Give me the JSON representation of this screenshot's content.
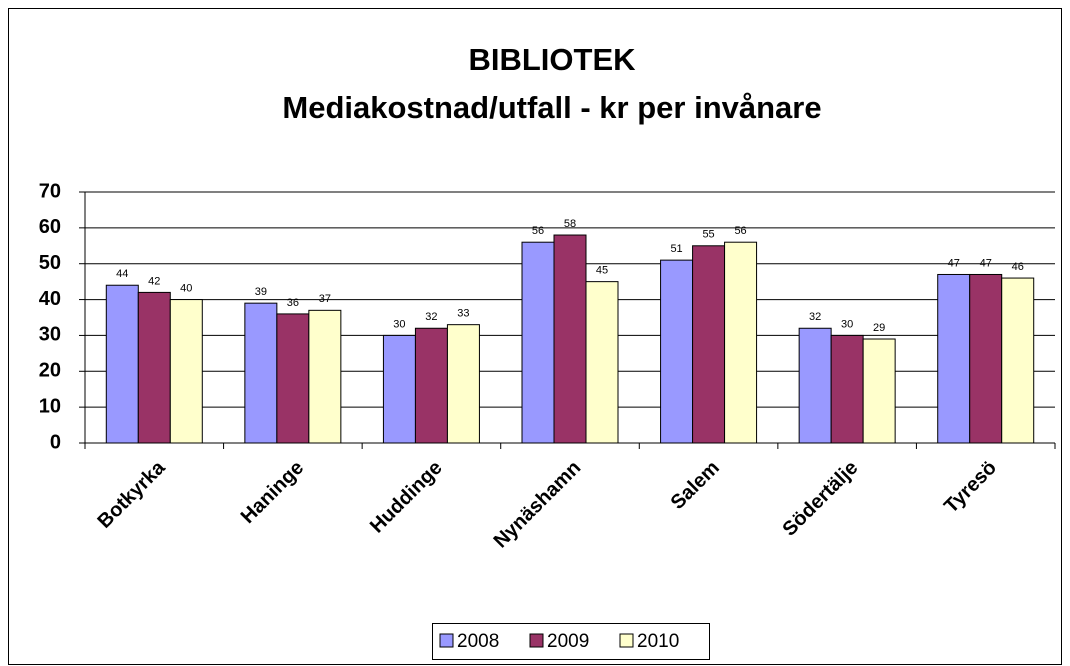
{
  "chart_data": {
    "type": "bar",
    "title": "BIBLIOTEK",
    "subtitle": "Mediakostnad/utfall - kr per invånare",
    "categories": [
      "Botkyrka",
      "Haninge",
      "Huddinge",
      "Nynäshamn",
      "Salem",
      "Södertälje",
      "Tyresö"
    ],
    "series": [
      {
        "name": "2008",
        "color": "#9999ff",
        "values": [
          44,
          39,
          30,
          56,
          51,
          32,
          47
        ]
      },
      {
        "name": "2009",
        "color": "#993366",
        "values": [
          42,
          36,
          32,
          58,
          55,
          30,
          47
        ]
      },
      {
        "name": "2010",
        "color": "#ffffcc",
        "values": [
          40,
          37,
          33,
          45,
          56,
          29,
          46
        ]
      }
    ],
    "ylim": [
      0,
      70
    ],
    "yticks": [
      0,
      10,
      20,
      30,
      40,
      50,
      60,
      70
    ],
    "grid": true,
    "legend": "bottom"
  }
}
